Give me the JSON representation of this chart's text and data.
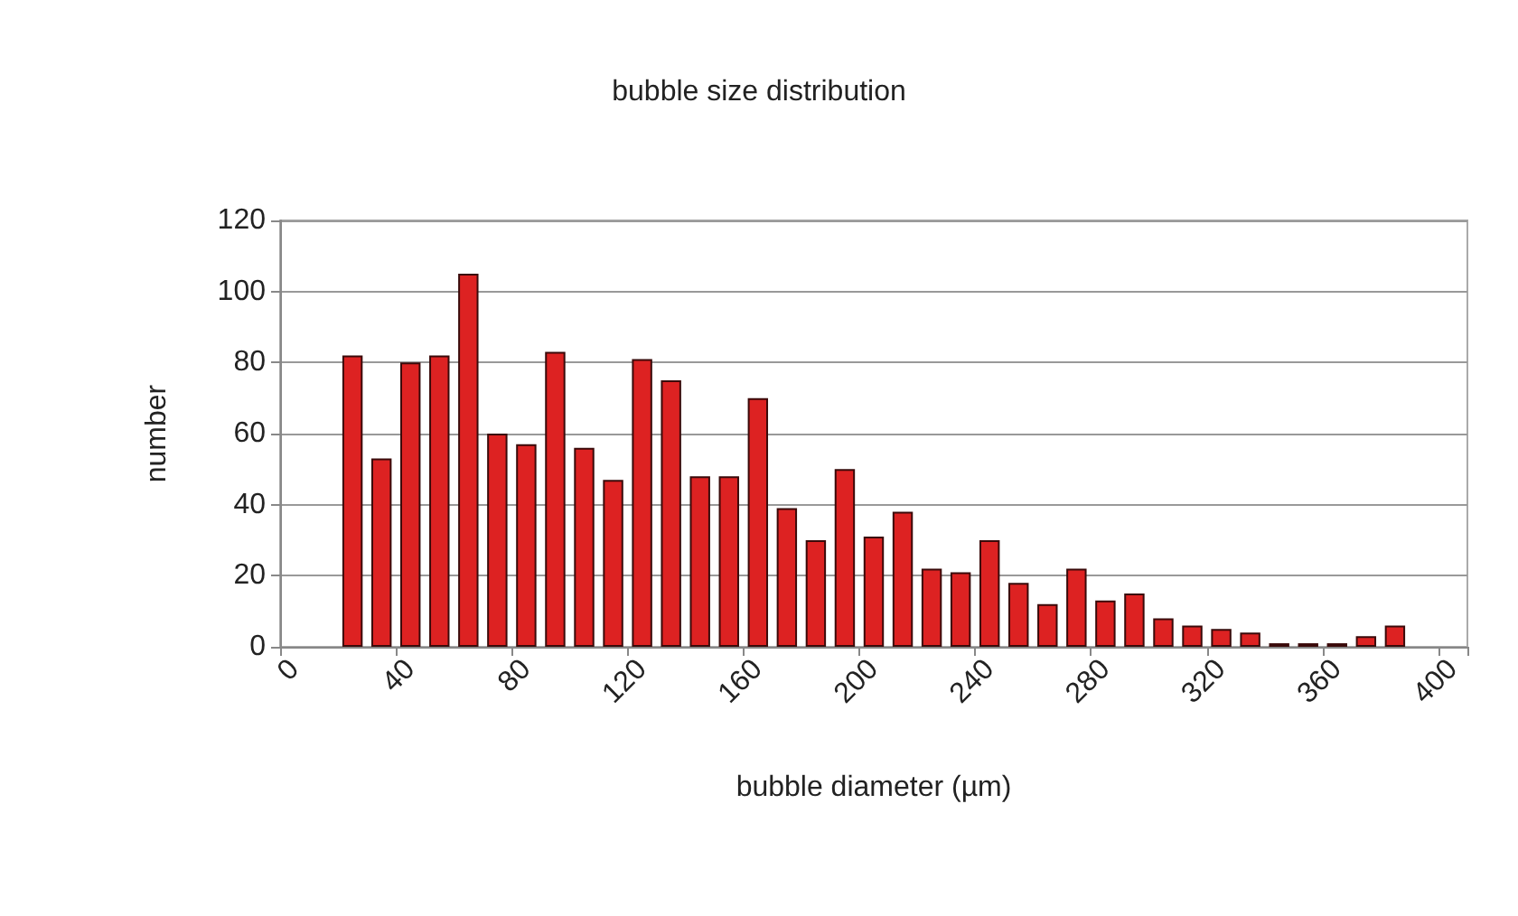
{
  "chart_data": {
    "type": "bar",
    "title": "bubble size distribution",
    "xlabel": "bubble diameter (µm)",
    "ylabel": "number",
    "categories": [
      "0",
      null,
      null,
      null,
      "40",
      null,
      null,
      null,
      "80",
      null,
      null,
      null,
      "120",
      null,
      null,
      null,
      "160",
      null,
      null,
      null,
      "200",
      null,
      null,
      null,
      "240",
      null,
      null,
      null,
      "280",
      null,
      null,
      null,
      "320",
      null,
      null,
      null,
      "360",
      null,
      null,
      null,
      "400"
    ],
    "values": [
      null,
      null,
      82,
      53,
      80,
      82,
      105,
      60,
      57,
      83,
      56,
      47,
      81,
      75,
      48,
      48,
      70,
      39,
      30,
      50,
      31,
      38,
      22,
      21,
      30,
      18,
      12,
      22,
      13,
      15,
      8,
      6,
      5,
      4,
      1,
      1,
      1,
      3,
      6,
      null,
      null
    ],
    "color": "#dd2222",
    "ylim": [
      0,
      120
    ],
    "yticks": [
      0,
      20,
      40,
      60,
      80,
      100,
      120
    ],
    "grid": "y"
  }
}
